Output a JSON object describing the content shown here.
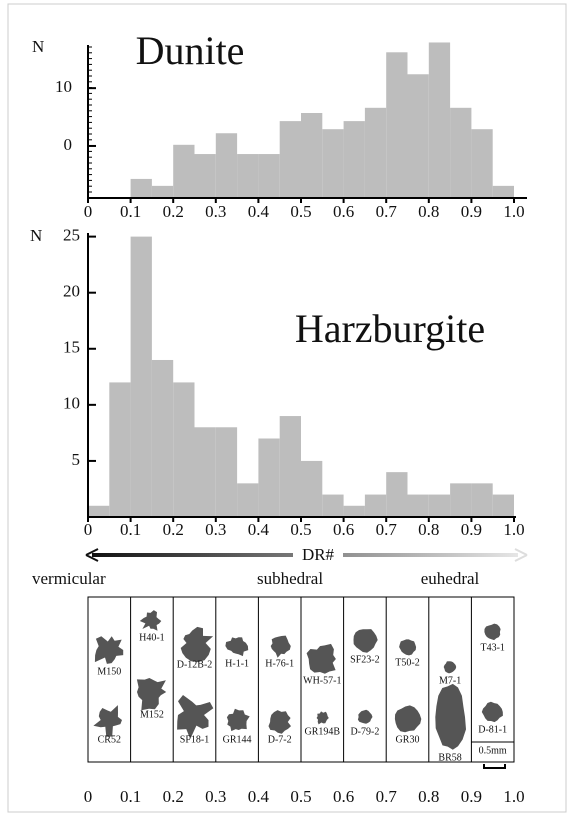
{
  "chart_data": [
    {
      "type": "histogram",
      "title": "Dunite",
      "y_label": "N",
      "bins": [
        0,
        0.05,
        0.1,
        0.15,
        0.2,
        0.25,
        0.3,
        0.35,
        0.4,
        0.45,
        0.5,
        0.55,
        0.6,
        0.65,
        0.7,
        0.75,
        0.8,
        0.85,
        0.9,
        0.95,
        1
      ],
      "values": [
        -9,
        -9,
        -5.7,
        -6.9,
        0.2,
        -1.4,
        2.2,
        -1.4,
        -1.4,
        4.3,
        5.7,
        2.9,
        4.3,
        6.6,
        16.2,
        12.4,
        17.9,
        6.6,
        2.9,
        -6.9
      ],
      "color": "#bdbdbd",
      "xlim": [
        0,
        1
      ],
      "ylim": [
        -9,
        18.5
      ],
      "xticks": [
        0,
        0.1,
        0.2,
        0.3,
        0.4,
        0.5,
        0.6,
        0.7,
        0.8,
        0.9,
        {
          "value": 1,
          "label": "1.0"
        }
      ],
      "yticks": [
        0,
        10
      ]
    },
    {
      "type": "histogram",
      "title": "Harzburgite",
      "y_label": "N",
      "bins": [
        0,
        0.05,
        0.1,
        0.15,
        0.2,
        0.25,
        0.3,
        0.35,
        0.4,
        0.45,
        0.5,
        0.55,
        0.6,
        0.65,
        0.7,
        0.75,
        0.8,
        0.85,
        0.9,
        0.95,
        1
      ],
      "values": [
        1,
        12,
        25,
        14,
        12,
        8,
        8,
        3,
        7,
        9,
        5,
        2,
        1,
        2,
        4,
        2,
        2,
        3,
        3,
        2
      ],
      "color": "#bdbdbd",
      "xlim": [
        0,
        1
      ],
      "ylim": [
        0,
        25.5
      ],
      "xticks": [
        0,
        0.1,
        0.2,
        0.3,
        0.4,
        0.5,
        0.6,
        0.7,
        0.8,
        0.9,
        {
          "value": 1,
          "label": "1.0"
        }
      ],
      "yticks": [
        5,
        10,
        15,
        20,
        25
      ]
    }
  ],
  "morphology": {
    "axis_label": "DR#",
    "classes": [
      "vermicular",
      "subhedral",
      "euhedral"
    ],
    "columns": [
      [
        "M150",
        "CR52"
      ],
      [
        "H40-1",
        "M152"
      ],
      [
        "D-12B-2",
        "SF18-1"
      ],
      [
        "H-1-1",
        "GR144"
      ],
      [
        "H-76-1",
        "D-7-2"
      ],
      [
        "WH-57-1",
        "GR194B"
      ],
      [
        "SF23-2",
        "D-79-2"
      ],
      [
        "T50-2",
        "GR30"
      ],
      [
        "M7-1",
        "BR58"
      ],
      [
        "T43-1",
        "D-81-1"
      ]
    ],
    "scale_bar": "0.5mm",
    "tick_labels": [
      "0",
      "0.1",
      "0.2",
      "0.3",
      "0.4",
      "0.5",
      "0.6",
      "0.7",
      "0.8",
      "0.9",
      "1.0"
    ]
  }
}
